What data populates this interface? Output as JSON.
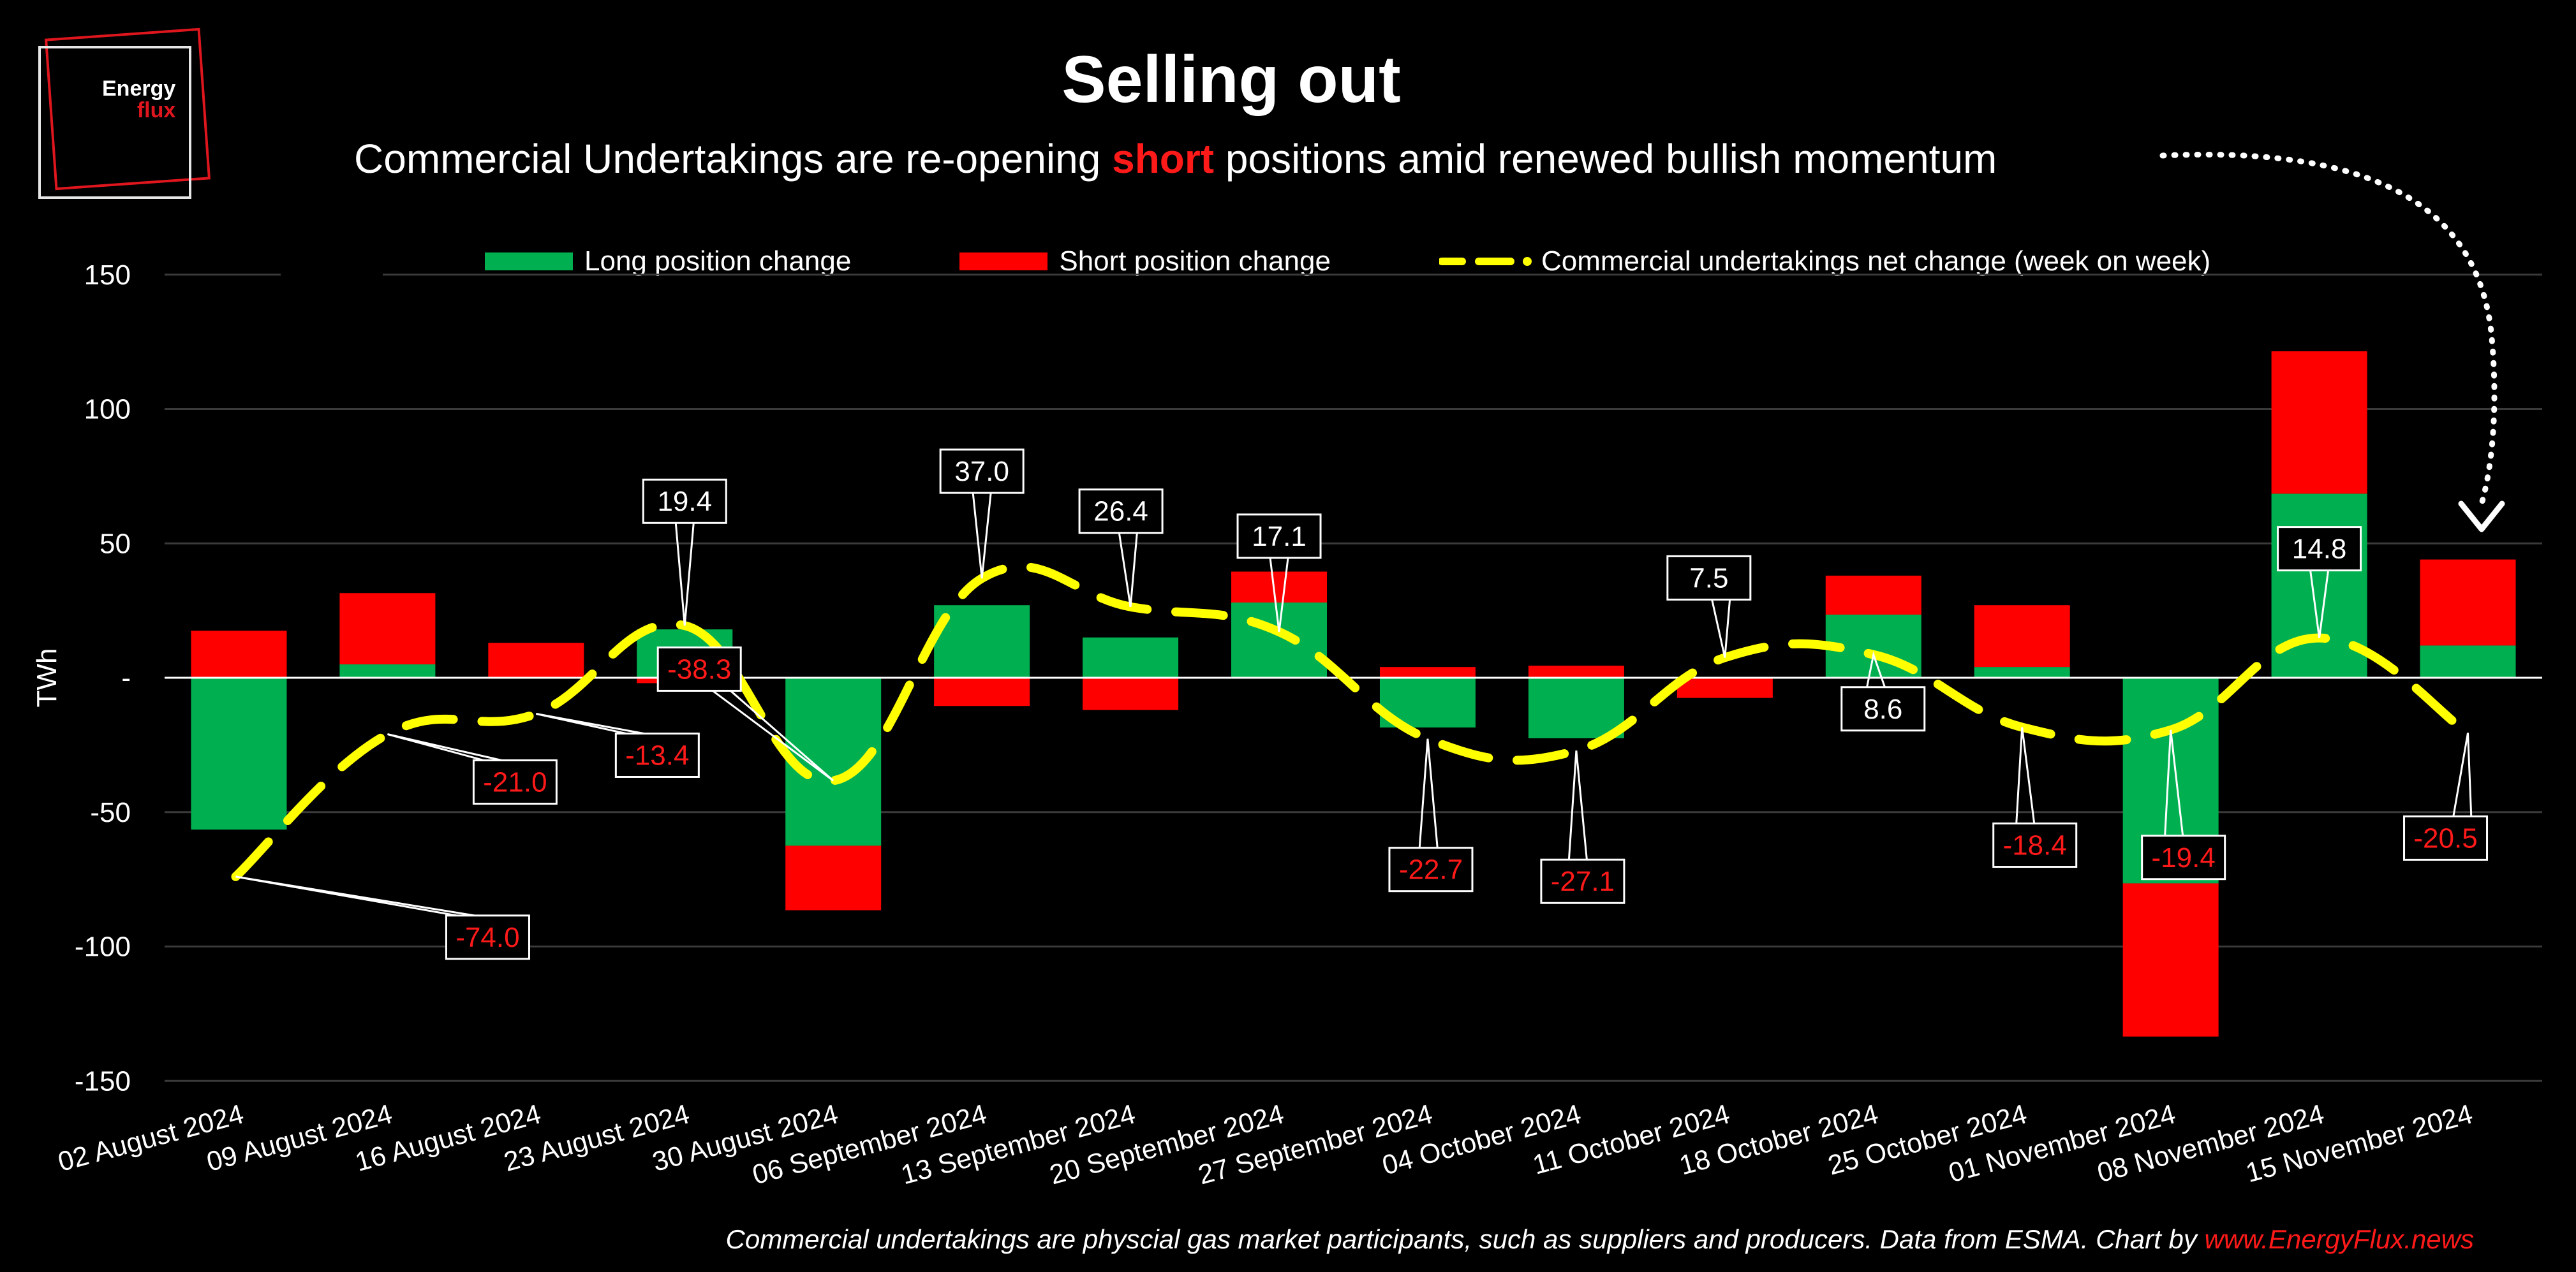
{
  "logo": {
    "line1": "Energy",
    "line2": "flux"
  },
  "title": "Selling out",
  "subtitle": {
    "before": "Commercial Undertakings are re-opening",
    "highlight": "short",
    "after": "positions amid renewed bullish momentum"
  },
  "footnote": {
    "text": "Commercial undertakings are physcial gas market participants, such as suppliers and producers. Data from ESMA. Chart by",
    "source": "www.EnergyFlux.news"
  },
  "legend": {
    "long": "Long position change",
    "short": "Short position change",
    "net": "Commercial undertakings net change (week on week)"
  },
  "colors": {
    "long": "#00b050",
    "short": "#ff0000",
    "net": "#ffff00",
    "background": "#000000",
    "accent": "#e0161e"
  },
  "chart_data": {
    "type": "bar",
    "stacked": true,
    "ylabel": "TWh",
    "ylim": [
      -150,
      150
    ],
    "yticks": [
      150,
      100,
      50,
      0,
      -50,
      -100,
      -150
    ],
    "ytick_labels": [
      "150",
      "100",
      "50",
      "-",
      "-50",
      "-100",
      "-150"
    ],
    "grid": true,
    "legend_position": "top",
    "categories": [
      "02 August 2024",
      "09 August 2024",
      "16 August 2024",
      "23 August 2024",
      "30 August 2024",
      "06 September 2024",
      "13 September 2024",
      "20 September 2024",
      "27 September 2024",
      "04 October 2024",
      "11 October 2024",
      "18 October 2024",
      "25 October 2024",
      "01 November 2024",
      "08 November 2024",
      "15 November 2024"
    ],
    "series": [
      {
        "name": "Long position change",
        "type": "bar",
        "values": [
          -56.5,
          5,
          0,
          18,
          -62.5,
          27,
          15,
          28,
          -18.5,
          -22.5,
          0,
          23.5,
          4,
          -76.5,
          68.5,
          12
        ]
      },
      {
        "name": "Short position change",
        "type": "bar",
        "values": [
          17.5,
          26.5,
          13,
          -2,
          -24,
          -10.5,
          -12,
          11.5,
          4,
          4.5,
          -7.5,
          14.5,
          23,
          -57,
          53,
          32
        ]
      },
      {
        "name": "Commercial undertakings net change (week on week)",
        "type": "line",
        "values": [
          -74.0,
          -21.0,
          -13.4,
          19.4,
          -38.3,
          37.0,
          26.4,
          17.1,
          -22.7,
          -27.1,
          7.5,
          8.6,
          -18.4,
          -19.4,
          14.8,
          -20.5
        ]
      }
    ],
    "data_labels": [
      "-74.0",
      "-21.0",
      "-13.4",
      "19.4",
      "-38.3",
      "37.0",
      "26.4",
      "17.1",
      "-22.7",
      "-27.1",
      "7.5",
      "8.6",
      "-18.4",
      "-19.4",
      "14.8",
      "-20.5"
    ]
  }
}
